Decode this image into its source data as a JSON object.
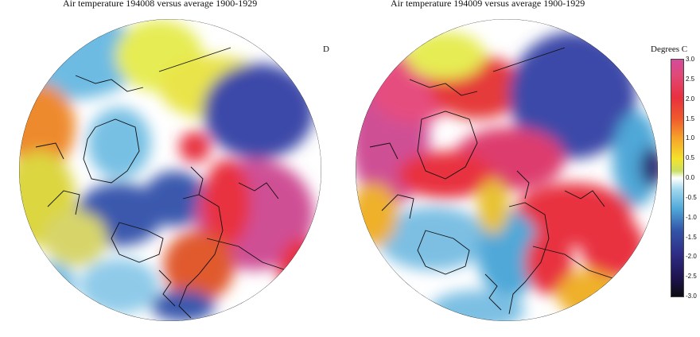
{
  "titles": {
    "left": "Air temperature 194008 versus average 1900-1929",
    "right": "Air temperature 194009 versus average 1900-1929"
  },
  "stray_label": "D",
  "legend": {
    "title": "Degrees C",
    "ticks": [
      "3.0",
      "2.5",
      "2.0",
      "1.5",
      "1.0",
      "0.5",
      "0.0",
      "-0.5",
      "-1.0",
      "-1.5",
      "-2.0",
      "-2.5",
      "-3.0"
    ],
    "colors": {
      "high": "#d34b9c",
      "red": "#e8303f",
      "orange": "#f6a22b",
      "yellow": "#f4e32c",
      "zero": "#ffffff",
      "light_blue": "#9fd6ee",
      "blue": "#4fa8d8",
      "dark_blue": "#2e2d86",
      "lowest": "#0c0c10"
    }
  },
  "maps": [
    {
      "period": "194008",
      "baseline": "1900-1929"
    },
    {
      "period": "194009",
      "baseline": "1900-1929"
    }
  ]
}
